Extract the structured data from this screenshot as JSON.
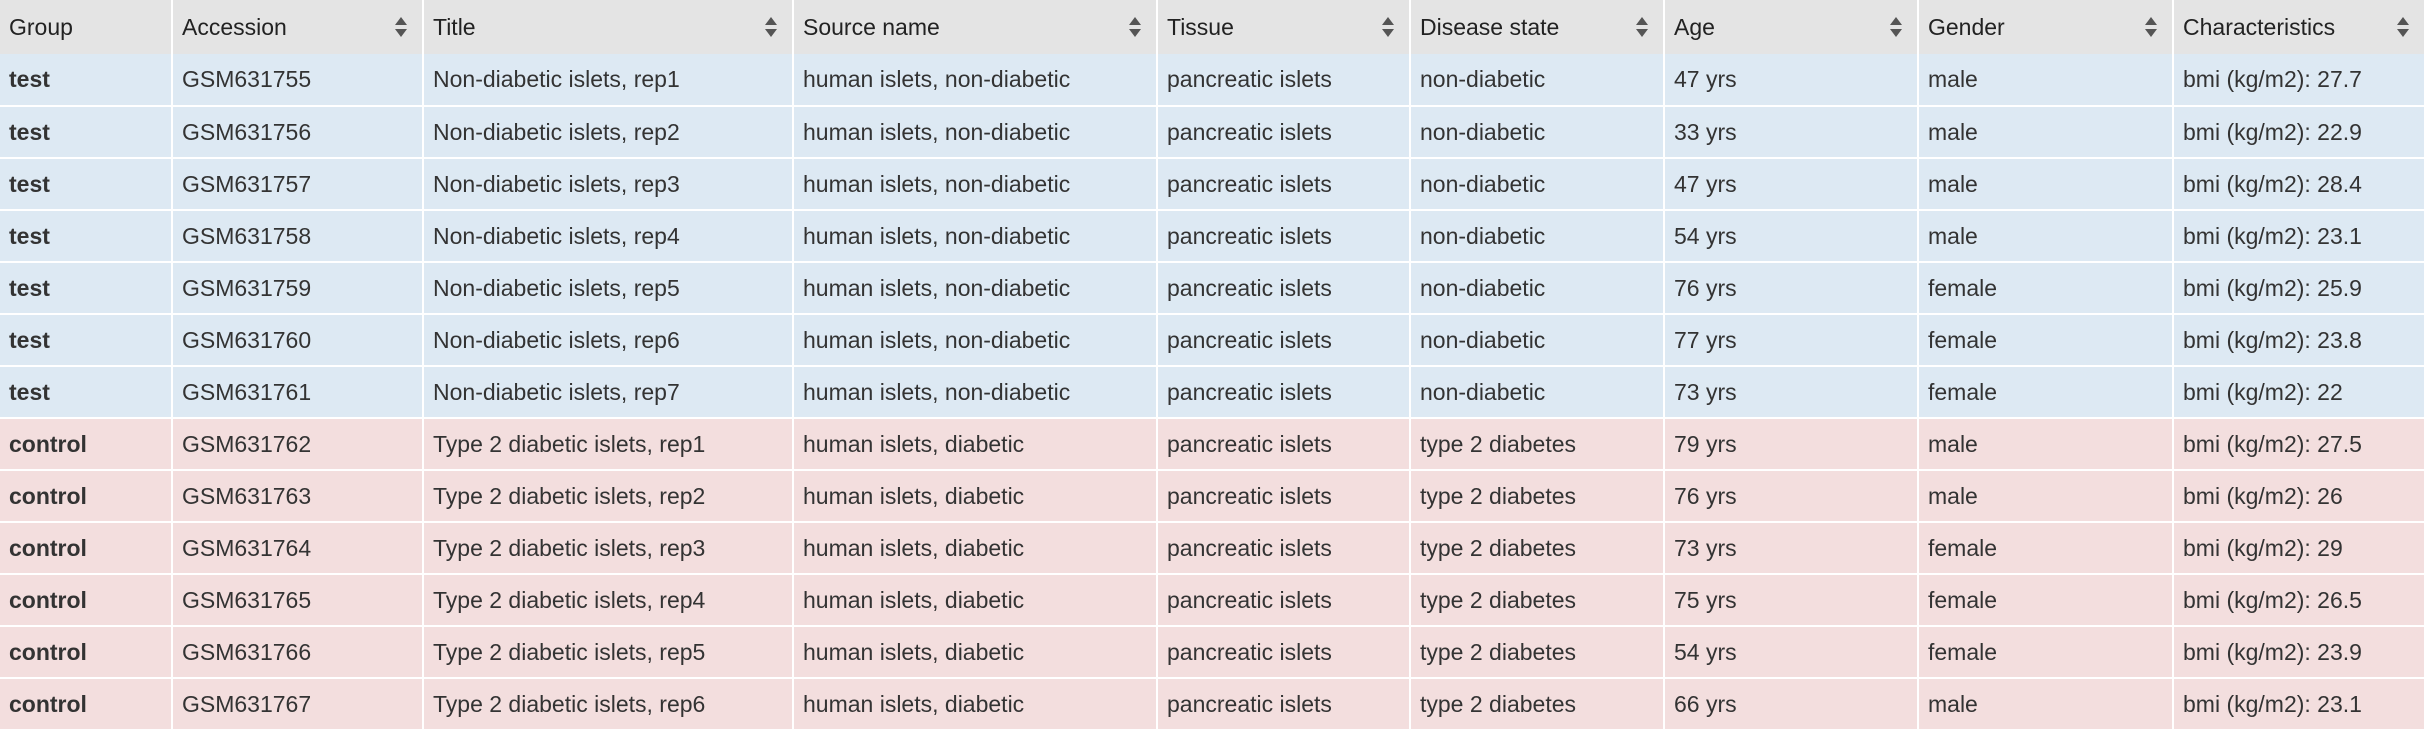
{
  "table": {
    "columns": [
      {
        "label": "Group",
        "sortable": false
      },
      {
        "label": "Accession",
        "sortable": true
      },
      {
        "label": "Title",
        "sortable": true
      },
      {
        "label": "Source name",
        "sortable": true
      },
      {
        "label": "Tissue",
        "sortable": true
      },
      {
        "label": "Disease state",
        "sortable": true
      },
      {
        "label": "Age",
        "sortable": true
      },
      {
        "label": "Gender",
        "sortable": true
      },
      {
        "label": "Characteristics",
        "sortable": true
      }
    ],
    "rows": [
      {
        "group": "test",
        "accession": "GSM631755",
        "title": "Non-diabetic islets, rep1",
        "source_name": "human islets, non-diabetic",
        "tissue": "pancreatic islets",
        "disease_state": "non-diabetic",
        "age": "47 yrs",
        "gender": "male",
        "characteristics": "bmi (kg/m2): 27.7"
      },
      {
        "group": "test",
        "accession": "GSM631756",
        "title": "Non-diabetic islets, rep2",
        "source_name": "human islets, non-diabetic",
        "tissue": "pancreatic islets",
        "disease_state": "non-diabetic",
        "age": "33 yrs",
        "gender": "male",
        "characteristics": "bmi (kg/m2): 22.9"
      },
      {
        "group": "test",
        "accession": "GSM631757",
        "title": "Non-diabetic islets, rep3",
        "source_name": "human islets, non-diabetic",
        "tissue": "pancreatic islets",
        "disease_state": "non-diabetic",
        "age": "47 yrs",
        "gender": "male",
        "characteristics": "bmi (kg/m2): 28.4"
      },
      {
        "group": "test",
        "accession": "GSM631758",
        "title": "Non-diabetic islets, rep4",
        "source_name": "human islets, non-diabetic",
        "tissue": "pancreatic islets",
        "disease_state": "non-diabetic",
        "age": "54 yrs",
        "gender": "male",
        "characteristics": "bmi (kg/m2): 23.1"
      },
      {
        "group": "test",
        "accession": "GSM631759",
        "title": "Non-diabetic islets, rep5",
        "source_name": "human islets, non-diabetic",
        "tissue": "pancreatic islets",
        "disease_state": "non-diabetic",
        "age": "76 yrs",
        "gender": "female",
        "characteristics": "bmi (kg/m2): 25.9"
      },
      {
        "group": "test",
        "accession": "GSM631760",
        "title": "Non-diabetic islets, rep6",
        "source_name": "human islets, non-diabetic",
        "tissue": "pancreatic islets",
        "disease_state": "non-diabetic",
        "age": "77 yrs",
        "gender": "female",
        "characteristics": "bmi (kg/m2): 23.8"
      },
      {
        "group": "test",
        "accession": "GSM631761",
        "title": "Non-diabetic islets, rep7",
        "source_name": "human islets, non-diabetic",
        "tissue": "pancreatic islets",
        "disease_state": "non-diabetic",
        "age": "73 yrs",
        "gender": "female",
        "characteristics": "bmi (kg/m2): 22"
      },
      {
        "group": "control",
        "accession": "GSM631762",
        "title": "Type 2 diabetic islets, rep1",
        "source_name": "human islets, diabetic",
        "tissue": "pancreatic islets",
        "disease_state": "type 2 diabetes",
        "age": "79 yrs",
        "gender": "male",
        "characteristics": "bmi (kg/m2): 27.5"
      },
      {
        "group": "control",
        "accession": "GSM631763",
        "title": "Type 2 diabetic islets, rep2",
        "source_name": "human islets, diabetic",
        "tissue": "pancreatic islets",
        "disease_state": "type 2 diabetes",
        "age": "76 yrs",
        "gender": "male",
        "characteristics": "bmi (kg/m2): 26"
      },
      {
        "group": "control",
        "accession": "GSM631764",
        "title": "Type 2 diabetic islets, rep3",
        "source_name": "human islets, diabetic",
        "tissue": "pancreatic islets",
        "disease_state": "type 2 diabetes",
        "age": "73 yrs",
        "gender": "female",
        "characteristics": "bmi (kg/m2): 29"
      },
      {
        "group": "control",
        "accession": "GSM631765",
        "title": "Type 2 diabetic islets, rep4",
        "source_name": "human islets, diabetic",
        "tissue": "pancreatic islets",
        "disease_state": "type 2 diabetes",
        "age": "75 yrs",
        "gender": "female",
        "characteristics": "bmi (kg/m2): 26.5"
      },
      {
        "group": "control",
        "accession": "GSM631766",
        "title": "Type 2 diabetic islets, rep5",
        "source_name": "human islets, diabetic",
        "tissue": "pancreatic islets",
        "disease_state": "type 2 diabetes",
        "age": "54 yrs",
        "gender": "female",
        "characteristics": "bmi (kg/m2): 23.9"
      },
      {
        "group": "control",
        "accession": "GSM631767",
        "title": "Type 2 diabetic islets, rep6",
        "source_name": "human islets, diabetic",
        "tissue": "pancreatic islets",
        "disease_state": "type 2 diabetes",
        "age": "66 yrs",
        "gender": "male",
        "characteristics": "bmi (kg/m2): 23.1"
      }
    ]
  },
  "colors": {
    "header_bg": "#e4e4e4",
    "test_row_bg": "#dde9f3",
    "control_row_bg": "#f3dede",
    "sort_icon": "#555555"
  },
  "icons": {
    "sort": "sort-up-down-icon"
  }
}
